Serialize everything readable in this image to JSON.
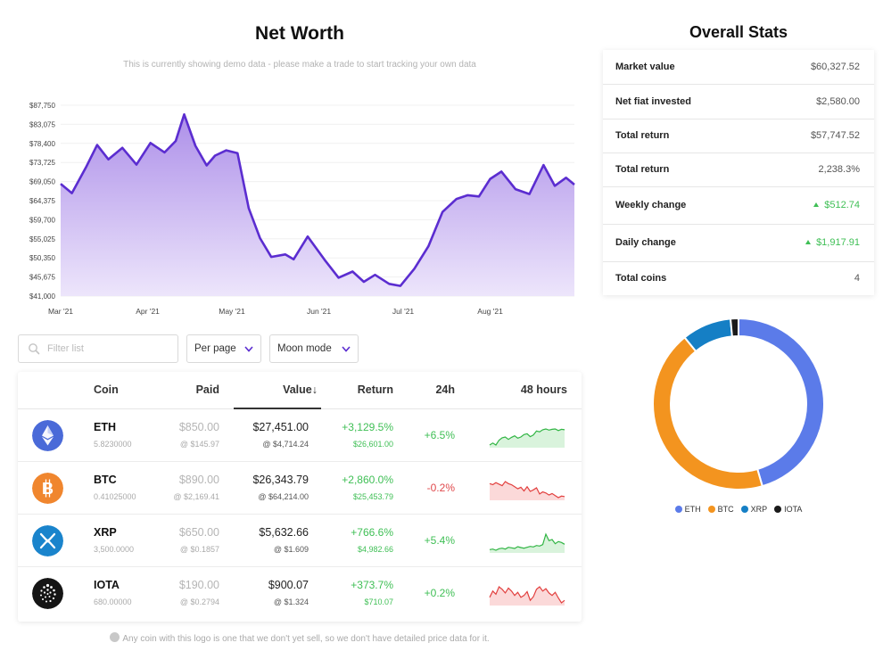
{
  "header": {
    "title": "Net Worth",
    "demo_note": "This is currently showing demo data - please make a trade to start tracking your own data"
  },
  "chart_data": {
    "type": "area",
    "title": "",
    "xlabel": "",
    "ylabel": "",
    "ylim": [
      41000,
      87750
    ],
    "y_ticks": [
      "$87,750",
      "$83,075",
      "$78,400",
      "$73,725",
      "$69,050",
      "$64,375",
      "$59,700",
      "$55,025",
      "$50,350",
      "$45,675",
      "$41,000"
    ],
    "x_ticks": [
      "Mar '21",
      "Apr '21",
      "May '21",
      "Jun '21",
      "Jul '21",
      "Aug '21"
    ],
    "x": [
      "2021-03-01",
      "2021-03-05",
      "2021-03-10",
      "2021-03-14",
      "2021-03-18",
      "2021-03-23",
      "2021-03-28",
      "2021-04-02",
      "2021-04-07",
      "2021-04-11",
      "2021-04-14",
      "2021-04-18",
      "2021-04-22",
      "2021-04-25",
      "2021-04-29",
      "2021-05-03",
      "2021-05-07",
      "2021-05-11",
      "2021-05-15",
      "2021-05-20",
      "2021-05-23",
      "2021-05-28",
      "2021-06-03",
      "2021-06-08",
      "2021-06-13",
      "2021-06-17",
      "2021-06-21",
      "2021-06-26",
      "2021-06-30",
      "2021-07-05",
      "2021-07-10",
      "2021-07-15",
      "2021-07-20",
      "2021-07-24",
      "2021-07-28",
      "2021-08-01",
      "2021-08-05",
      "2021-08-10",
      "2021-08-15",
      "2021-08-20",
      "2021-08-24",
      "2021-08-28",
      "2021-08-31"
    ],
    "series": [
      {
        "values": [
          68500,
          66200,
          72500,
          78000,
          74500,
          77300,
          73200,
          78500,
          76200,
          79000,
          85500,
          77800,
          73000,
          75400,
          76700,
          76000,
          62500,
          55200,
          50600,
          51200,
          50000,
          55600,
          49900,
          45500,
          47000,
          44500,
          46200,
          44000,
          43500,
          47700,
          53200,
          61600,
          64800,
          65700,
          65400,
          69700,
          71500,
          67200,
          66000,
          73100,
          68000,
          70000,
          68300
        ]
      }
    ],
    "colors": {
      "line": "#5b2dd0",
      "fill_top": "#a98ae8",
      "fill_bottom": "#ece4fb"
    }
  },
  "controls": {
    "filter_placeholder": "Filter list",
    "per_page_label": "Per page",
    "mode_label": "Moon mode"
  },
  "table": {
    "headers": {
      "coin": "Coin",
      "paid": "Paid",
      "value": "Value",
      "sort_arrow": "↓",
      "ret": "Return",
      "h24": "24h",
      "h48": "48 hours"
    },
    "rows": [
      {
        "symbol": "ETH",
        "qty": "5.8230000",
        "paid": "$850.00",
        "paid_at": "@ $145.97",
        "value": "$27,451.00",
        "value_at": "@ $4,714.24",
        "ret_pct": "+3,129.5%",
        "ret_amt": "$26,601.00",
        "change": "+6.5%",
        "dir": "up",
        "logo": "eth-logo-icon",
        "logo_color": "#4a6ad8",
        "spark": [
          3,
          3.5,
          3,
          4.2,
          4.8,
          5,
          4.4,
          4.9,
          5.3,
          4.7,
          5,
          5.6,
          5.8,
          5.1,
          5.5,
          6.5,
          6.3,
          6.8,
          7,
          6.7,
          6.9,
          7,
          6.6,
          6.9,
          6.8
        ]
      },
      {
        "symbol": "BTC",
        "qty": "0.41025000",
        "paid": "$890.00",
        "paid_at": "@ $2,169.41",
        "value": "$26,343.79",
        "value_at": "@ $64,214.00",
        "ret_pct": "+2,860.0%",
        "ret_amt": "$25,453.79",
        "change": "-0.2%",
        "dir": "down",
        "logo": "btc-logo-icon",
        "logo_color": "#f0862e",
        "spark": [
          7,
          6.8,
          7.2,
          6.9,
          6.6,
          7.4,
          7,
          6.8,
          6.4,
          6,
          6.3,
          5.6,
          6.4,
          5.5,
          5.8,
          6.2,
          5,
          5.4,
          5.2,
          4.8,
          5.1,
          4.7,
          4.3,
          4.6,
          4.5
        ]
      },
      {
        "symbol": "XRP",
        "qty": "3,500.0000",
        "paid": "$650.00",
        "paid_at": "@ $0.1857",
        "value": "$5,632.66",
        "value_at": "@ $1.609",
        "ret_pct": "+766.6%",
        "ret_amt": "$4,982.66",
        "change": "+5.4%",
        "dir": "up",
        "logo": "xrp-logo-icon",
        "logo_color": "#1a84cc",
        "spark": [
          2.8,
          3,
          2.6,
          3.1,
          3.3,
          3,
          3.6,
          3.4,
          3.2,
          3.8,
          3.5,
          3.3,
          3.6,
          3.9,
          3.7,
          4.2,
          4,
          4.5,
          8,
          5.8,
          6.2,
          4.8,
          5.5,
          5.2,
          4.6
        ]
      },
      {
        "symbol": "IOTA",
        "qty": "680.00000",
        "paid": "$190.00",
        "paid_at": "@ $0.2794",
        "value": "$900.07",
        "value_at": "@ $1.324",
        "ret_pct": "+373.7%",
        "ret_amt": "$710.07",
        "change": "+0.2%",
        "dir": "down",
        "logo": "iota-logo-icon",
        "logo_color": "#151515",
        "spark": [
          5.5,
          6.5,
          6,
          7.2,
          6.8,
          6.2,
          7,
          6.5,
          5.8,
          6.3,
          5.5,
          5.8,
          6.4,
          5,
          5.6,
          6.8,
          7.2,
          6.5,
          6.9,
          6.2,
          5.8,
          6.3,
          5.4,
          4.6,
          5
        ]
      }
    ]
  },
  "footnote": "Any coin with this logo is one that we don't yet sell, so we don't have detailed price data for it.",
  "stats": {
    "title": "Overall Stats",
    "rows": [
      {
        "label": "Market value",
        "value": "$60,327.52",
        "green": false,
        "arrow": false
      },
      {
        "label": "Net fiat invested",
        "value": "$2,580.00",
        "green": false,
        "arrow": false
      },
      {
        "label": "Total return",
        "value": "$57,747.52",
        "green": false,
        "arrow": false
      },
      {
        "label": "Total return",
        "value": "2,238.3%",
        "green": false,
        "arrow": false
      },
      {
        "label": "Weekly change",
        "value": "$512.74",
        "green": true,
        "arrow": true
      },
      {
        "label": "Daily change",
        "value": "$1,917.91",
        "green": true,
        "arrow": true
      },
      {
        "label": "Total coins",
        "value": "4",
        "green": false,
        "arrow": false
      }
    ]
  },
  "donut": {
    "slices": [
      {
        "name": "ETH",
        "value": 27451.0,
        "color": "#5b7be9"
      },
      {
        "name": "BTC",
        "value": 26343.79,
        "color": "#f3941f"
      },
      {
        "name": "XRP",
        "value": 5632.66,
        "color": "#157fc5"
      },
      {
        "name": "IOTA",
        "value": 900.07,
        "color": "#1a1a1a"
      }
    ]
  }
}
